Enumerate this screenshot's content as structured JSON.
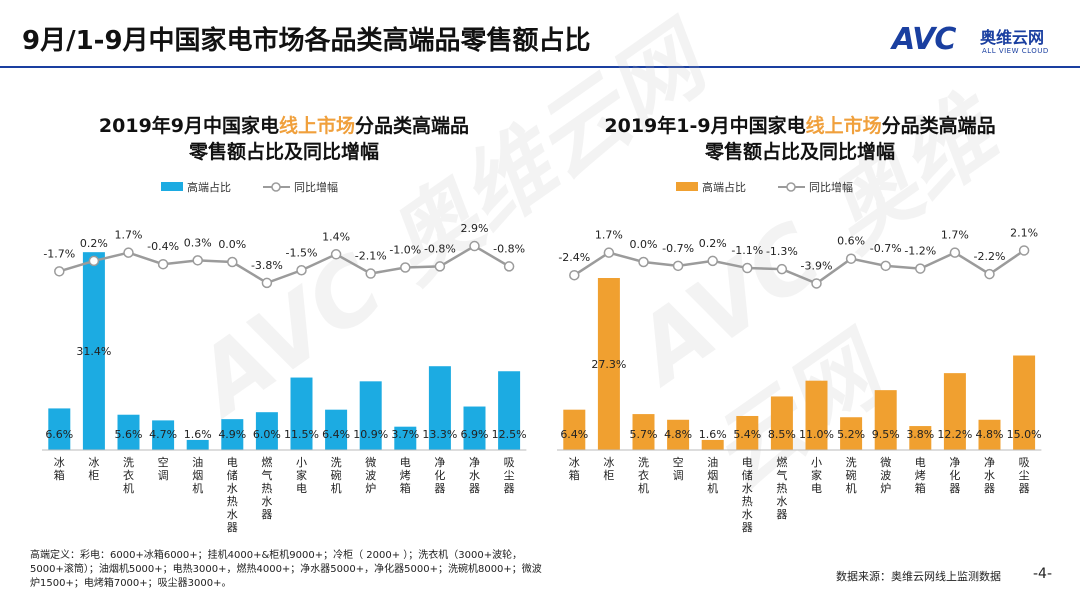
{
  "page": {
    "title": "9月/1-9月中国家电市场各品类高端品零售额占比",
    "logo_mark": "AVC",
    "logo_cn": "奥维云网",
    "logo_en": "ALL VIEW CLOUD",
    "footnote": "高端定义：彩电：6000+冰箱6000+；挂机4000+&柜机9000+；冷柜（ 2000+ ）；洗衣机（3000+波轮，5000+滚筒）；油烟机5000+；电热3000+，燃热4000+；净水器5000+，净化器5000+；洗碗机8000+；微波炉1500+；电烤箱7000+；吸尘器3000+。",
    "source": "数据来源：奥维云网线上监测数据",
    "page_number": "-4-",
    "watermark": "AVC 奥维云网"
  },
  "colors": {
    "left_bar": "#1cabe2",
    "right_bar": "#f0a030",
    "line": "#9b9b9b",
    "highlight": "#f0a03c",
    "brand": "#1a3fa0"
  },
  "chart_data": [
    {
      "type": "bar",
      "title_pre": "2019年9月中国家电",
      "title_hl": "线上市场",
      "title_post": "分品类高端品",
      "title_line2": "零售额占比及同比增幅",
      "legend_bar": "高端占比",
      "legend_line": "同比增幅",
      "categories": [
        "冰箱",
        "冰柜",
        "洗衣机",
        "空调",
        "油烟机",
        "电储水热水器",
        "燃气热水器",
        "小家电",
        "洗碗机",
        "微波炉",
        "电烤箱",
        "净化器",
        "净水器",
        "吸尘器"
      ],
      "share_values": [
        6.6,
        31.4,
        5.6,
        4.7,
        1.6,
        4.9,
        6.0,
        11.5,
        6.4,
        10.9,
        3.7,
        13.3,
        6.9,
        12.5
      ],
      "share_labels": [
        "6.6%",
        "31.4%",
        "5.6%",
        "4.7%",
        "1.6%",
        "4.9%",
        "6.0%",
        "11.5%",
        "6.4%",
        "10.9%",
        "3.7%",
        "13.3%",
        "6.9%",
        "12.5%"
      ],
      "yoy_values": [
        -1.7,
        0.2,
        1.7,
        -0.4,
        0.3,
        0.0,
        -3.8,
        -1.5,
        1.4,
        -2.1,
        -1.0,
        -0.8,
        2.9,
        -0.8
      ],
      "yoy_labels": [
        "-1.7%",
        "0.2%",
        "1.7%",
        "-0.4%",
        "0.3%",
        "0.0%",
        "-3.8%",
        "-1.5%",
        "1.4%",
        "-2.1%",
        "-1.0%",
        "-0.8%",
        "2.9%",
        "-0.8%"
      ]
    },
    {
      "type": "bar",
      "title_pre": "2019年1-9月中国家电",
      "title_hl": "线上市场",
      "title_post": "分品类高端品",
      "title_line2": "零售额占比及同比增幅",
      "legend_bar": "高端占比",
      "legend_line": "同比增幅",
      "categories": [
        "冰箱",
        "冰柜",
        "洗衣机",
        "空调",
        "油烟机",
        "电储水热水器",
        "燃气热水器",
        "小家电",
        "洗碗机",
        "微波炉",
        "电烤箱",
        "净化器",
        "净水器",
        "吸尘器"
      ],
      "share_values": [
        6.4,
        27.3,
        5.7,
        4.8,
        1.6,
        5.4,
        8.5,
        11.0,
        5.2,
        9.5,
        3.8,
        12.2,
        4.8,
        15.0
      ],
      "share_labels": [
        "6.4%",
        "27.3%",
        "5.7%",
        "4.8%",
        "1.6%",
        "5.4%",
        "8.5%",
        "11.0%",
        "5.2%",
        "9.5%",
        "3.8%",
        "12.2%",
        "4.8%",
        "15.0%"
      ],
      "yoy_values": [
        -2.4,
        1.7,
        0.0,
        -0.7,
        0.2,
        -1.1,
        -1.3,
        -3.9,
        0.6,
        -0.7,
        -1.2,
        1.7,
        -2.2,
        2.1
      ],
      "yoy_labels": [
        "-2.4%",
        "1.7%",
        "0.0%",
        "-0.7%",
        "0.2%",
        "-1.1%",
        "-1.3%",
        "-3.9%",
        "0.6%",
        "-0.7%",
        "-1.2%",
        "1.7%",
        "-2.2%",
        "2.1%"
      ]
    }
  ]
}
